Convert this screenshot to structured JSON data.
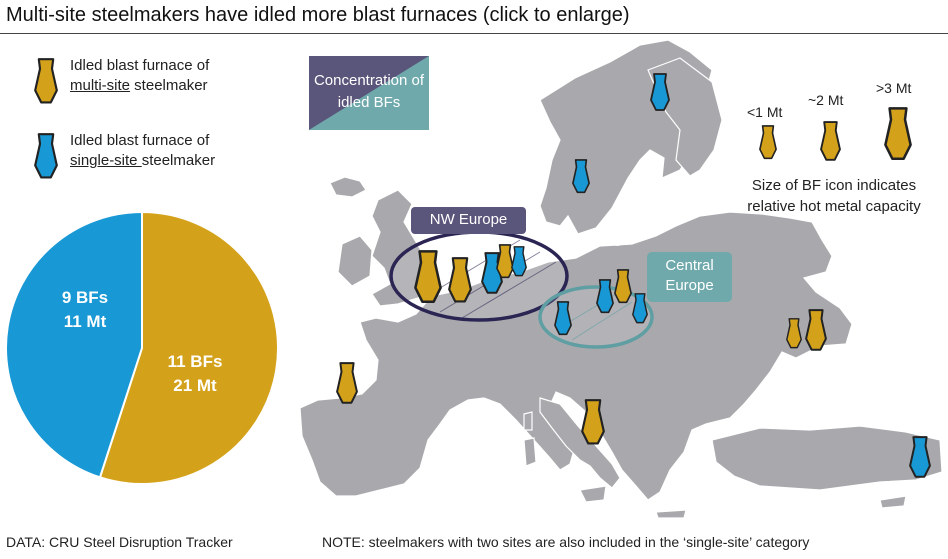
{
  "title": "Multi-site steelmakers have idled more blast furnaces (click to enlarge)",
  "legend": {
    "multi": {
      "line1": "Idled blast furnace of",
      "underlined": "multi-site",
      "rest": " steelmaker"
    },
    "single": {
      "line1": "Idled blast furnace of",
      "underlined": "single-site ",
      "rest": "steelmaker"
    }
  },
  "concentration_label": "Concentration of idled BFs",
  "regions": {
    "nw_europe": "NW Europe",
    "central_europe_1": "Central",
    "central_europe_2": "Europe"
  },
  "size_legend": {
    "small": "<1 Mt",
    "medium": "~2 Mt",
    "large": ">3 Mt",
    "note_line1": "Size of BF icon indicates",
    "note_line2": "relative hot metal capacity"
  },
  "colors": {
    "multi": "#D4A21A",
    "single": "#1898D5",
    "land": "#A9A9AD",
    "panel_dark": "#5A557A",
    "panel_teal": "#6FA9AC"
  },
  "chart_data": {
    "type": "pie",
    "series": [
      {
        "name": "multi-site steelmaker",
        "bfs": 11,
        "capacity_mt": 21,
        "label_line1": "11 BFs",
        "label_line2": "21 Mt"
      },
      {
        "name": "single-site steelmaker",
        "bfs": 9,
        "capacity_mt": 11,
        "label_line1": "9 BFs",
        "label_line2": "11 Mt"
      }
    ]
  },
  "footer": {
    "source": "DATA: CRU Steel Disruption Tracker",
    "note": "NOTE: steelmakers with two sites are also included in the ‘single-site’ category"
  }
}
